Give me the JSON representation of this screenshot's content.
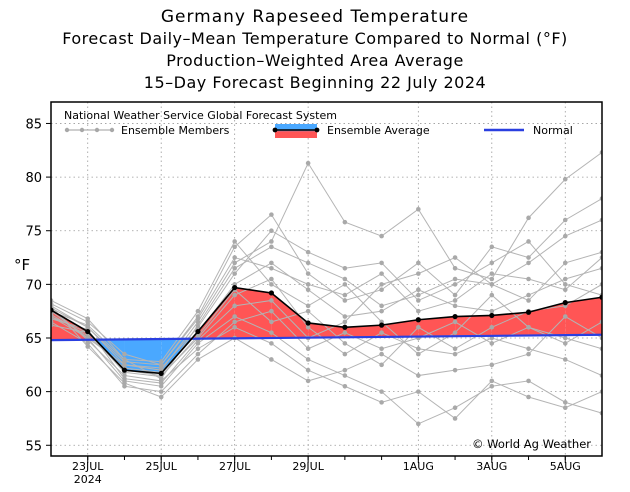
{
  "titles": {
    "line1": "Germany Rapeseed Temperature",
    "line2": "Forecast Daily–Mean Temperature Compared to Normal (°F)",
    "line3": "Production–Weighted Area Average",
    "line4": "15–Day Forecast Beginning 22 July 2024"
  },
  "chart_data": {
    "type": "line",
    "ylabel": "°F",
    "ylim": [
      54,
      87
    ],
    "yticks": [
      55,
      60,
      65,
      70,
      75,
      80,
      85
    ],
    "xlim": [
      0,
      15
    ],
    "xticks": [
      {
        "x": 1,
        "label": "23JUL",
        "sub": "2024"
      },
      {
        "x": 3,
        "label": "25JUL",
        "sub": ""
      },
      {
        "x": 5,
        "label": "27JUL",
        "sub": ""
      },
      {
        "x": 7,
        "label": "29JUL",
        "sub": ""
      },
      {
        "x": 10,
        "label": "1AUG",
        "sub": ""
      },
      {
        "x": 12,
        "label": "3AUG",
        "sub": ""
      },
      {
        "x": 14,
        "label": "5AUG",
        "sub": ""
      }
    ],
    "grid": true,
    "legend_title": "National Weather Service Global Forecast System",
    "legend": {
      "members": "Ensemble Members",
      "average": "Ensemble Average",
      "normal": "Normal"
    },
    "credit": "© World Ag Weather",
    "normal": {
      "x": [
        0,
        15
      ],
      "y": [
        64.8,
        65.3
      ]
    },
    "average": {
      "x": [
        0,
        1,
        2,
        3,
        4,
        5,
        6,
        7,
        8,
        9,
        10,
        11,
        12,
        13,
        14,
        15
      ],
      "y": [
        67.6,
        65.6,
        62.0,
        61.7,
        65.6,
        69.7,
        69.2,
        66.4,
        66.0,
        66.2,
        66.7,
        67.0,
        67.1,
        67.4,
        68.3,
        68.8
      ]
    },
    "members": [
      [
        68.5,
        66.8,
        63.0,
        61.2,
        66.2,
        71.5,
        73.5,
        72.0,
        70.5,
        68.0,
        69.0,
        70.5,
        70.0,
        72.0,
        74.5,
        76.0
      ],
      [
        67.5,
        65.0,
        61.0,
        60.5,
        64.5,
        67.0,
        65.5,
        63.0,
        61.5,
        60.0,
        57.0,
        58.5,
        60.5,
        61.0,
        59.0,
        58.0
      ],
      [
        68.0,
        66.0,
        62.5,
        62.0,
        66.5,
        72.0,
        74.0,
        81.3,
        75.8,
        74.5,
        77.0,
        71.5,
        70.5,
        76.2,
        79.8,
        82.3
      ],
      [
        67.0,
        65.5,
        62.0,
        61.5,
        65.0,
        69.0,
        70.5,
        66.0,
        63.5,
        65.5,
        64.0,
        63.5,
        65.0,
        64.0,
        63.0,
        61.5
      ],
      [
        67.8,
        64.8,
        61.5,
        61.0,
        64.0,
        66.0,
        64.5,
        62.0,
        60.5,
        59.0,
        60.0,
        57.5,
        61.0,
        59.5,
        58.5,
        60.0
      ],
      [
        68.2,
        66.5,
        63.5,
        62.5,
        67.0,
        73.5,
        76.5,
        71.0,
        68.5,
        69.5,
        72.0,
        69.0,
        73.5,
        72.5,
        76.0,
        78.0
      ],
      [
        66.5,
        64.5,
        60.5,
        60.0,
        63.5,
        66.5,
        67.5,
        64.0,
        65.5,
        64.0,
        65.0,
        66.5,
        64.5,
        66.0,
        65.0,
        64.0
      ],
      [
        67.2,
        65.2,
        62.2,
        61.8,
        65.5,
        70.0,
        72.0,
        69.5,
        67.0,
        67.5,
        69.5,
        68.0,
        67.5,
        69.0,
        70.5,
        71.5
      ],
      [
        66.8,
        65.8,
        61.2,
        60.8,
        64.8,
        68.0,
        68.5,
        65.0,
        66.5,
        70.0,
        71.0,
        72.5,
        70.0,
        68.5,
        72.0,
        73.0
      ],
      [
        67.5,
        66.2,
        63.0,
        62.8,
        67.5,
        74.0,
        70.0,
        68.0,
        70.0,
        66.5,
        63.5,
        65.5,
        69.0,
        66.0,
        64.5,
        66.5
      ],
      [
        68.0,
        64.2,
        60.8,
        59.5,
        63.0,
        65.0,
        63.0,
        61.0,
        62.0,
        63.5,
        61.5,
        62.0,
        62.5,
        63.5,
        67.0,
        65.0
      ],
      [
        67.0,
        65.0,
        62.5,
        62.2,
        66.0,
        71.0,
        75.0,
        73.0,
        71.5,
        72.0,
        68.5,
        70.0,
        72.0,
        74.0,
        70.0,
        69.0
      ],
      [
        66.2,
        65.5,
        61.8,
        61.4,
        65.2,
        69.5,
        66.5,
        67.5,
        64.5,
        62.5,
        66.0,
        64.0,
        66.0,
        67.5,
        68.0,
        70.0
      ],
      [
        67.8,
        66.0,
        62.8,
        62.5,
        66.8,
        72.5,
        71.5,
        70.0,
        69.0,
        71.0,
        67.5,
        68.5,
        71.0,
        70.5,
        69.5,
        72.5
      ]
    ]
  }
}
